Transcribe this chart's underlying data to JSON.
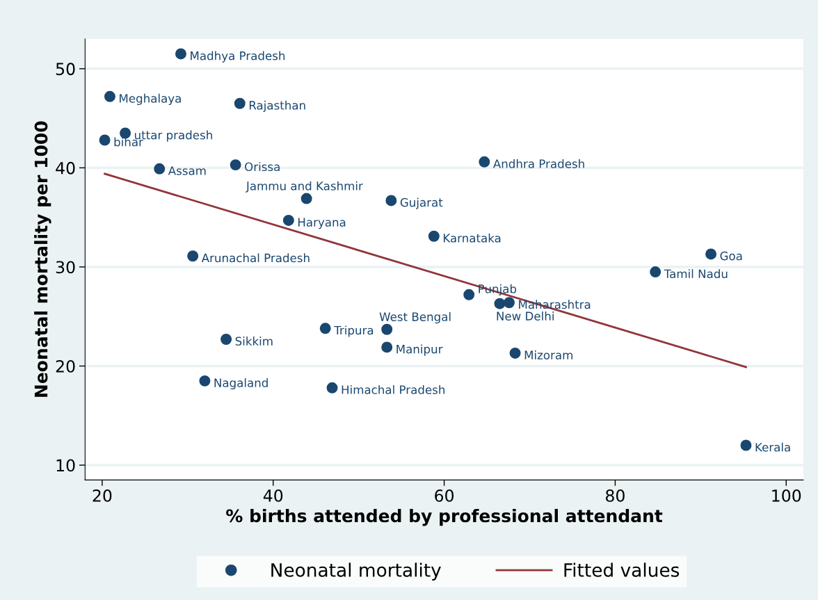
{
  "chart_data": {
    "type": "scatter",
    "xlabel": "% births attended by professional attendant",
    "ylabel": "Neonatal mortality per 1000",
    "xlim": [
      18,
      102
    ],
    "ylim": [
      8.5,
      53
    ],
    "xticks": [
      20,
      40,
      60,
      80,
      100
    ],
    "yticks": [
      10,
      20,
      30,
      40,
      50
    ],
    "grid": "y",
    "legend": "bottom",
    "marker": "circle",
    "series": [
      {
        "name": "Neonatal mortality",
        "color": "#1a476f",
        "x": [
          29.2,
          20.9,
          36.1,
          22.7,
          20.3,
          26.7,
          35.6,
          64.7,
          43.9,
          53.8,
          41.8,
          58.8,
          30.6,
          91.2,
          84.7,
          62.9,
          66.5,
          67.6,
          53.3,
          46.1,
          34.5,
          53.3,
          68.3,
          32.0,
          46.9,
          95.3
        ],
        "values": [
          51.5,
          47.2,
          46.5,
          43.5,
          42.8,
          39.9,
          40.3,
          40.6,
          36.9,
          36.7,
          34.7,
          33.1,
          31.1,
          31.3,
          29.5,
          27.2,
          26.3,
          26.4,
          23.7,
          23.8,
          22.7,
          21.9,
          21.3,
          18.5,
          17.8,
          12.0
        ],
        "value_labels": [
          "Madhya Pradesh",
          "Meghalaya",
          "Rajasthan",
          "uttar pradesh",
          "bihar",
          "Assam",
          "Orissa",
          "Andhra Pradesh",
          "Jammu and Kashmir",
          "Gujarat",
          "Haryana",
          "Karnataka",
          "Arunachal Pradesh",
          "Goa",
          "Tamil Nadu",
          "Punjab",
          "New Delhi",
          "Maharashtra",
          "West Bengal",
          "Tripura",
          "Sikkim",
          "Manipur",
          "Mizoram",
          "Nagaland",
          "Himachal Pradesh",
          "Kerala"
        ]
      },
      {
        "name": "Fitted values",
        "type": "line",
        "color": "#90353b",
        "marker": "none",
        "x": [
          20.3,
          95.3
        ],
        "values": [
          39.4,
          19.9
        ]
      }
    ]
  }
}
